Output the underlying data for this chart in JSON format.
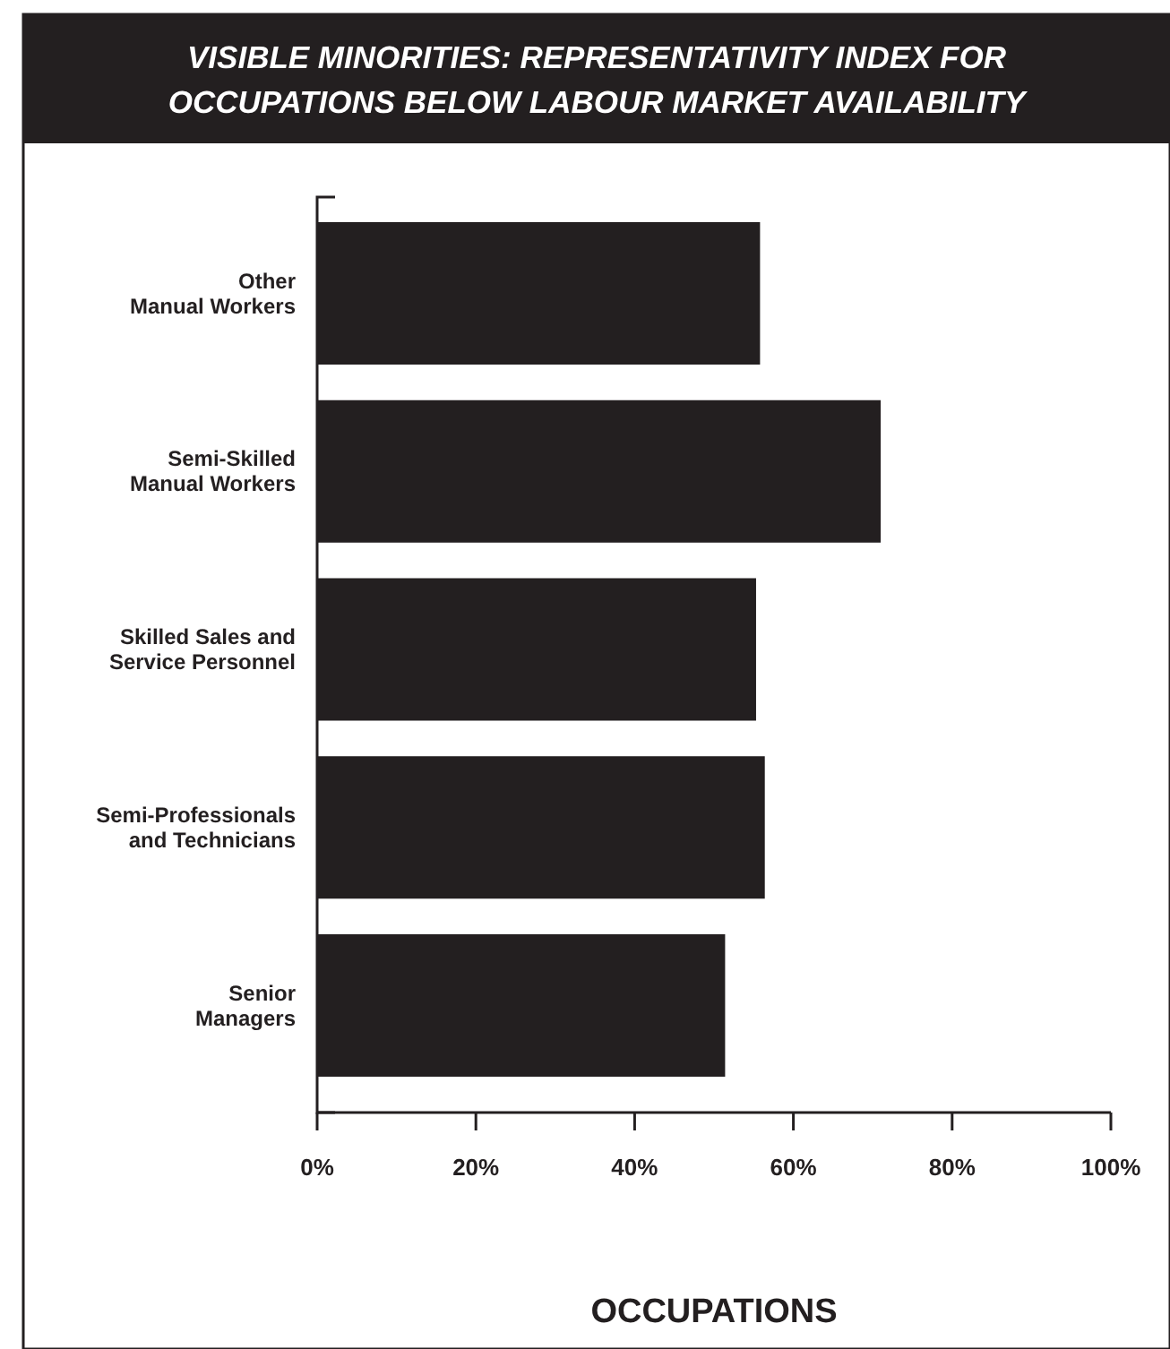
{
  "chart_data": {
    "type": "bar",
    "orientation": "horizontal",
    "title": "VISIBLE MINORITIES: REPRESENTATIVITY INDEX FOR OCCUPATIONS BELOW LABOUR MARKET AVAILABILITY",
    "xlabel": "OCCUPATIONS",
    "categories": [
      "Other Manual Workers",
      "Semi-Skilled Manual Workers",
      "Skilled Sales and Service Personnel",
      "Semi-Professionals and Technicians",
      "Senior Managers"
    ],
    "values": [
      55.8,
      71,
      55.3,
      56.4,
      51.4
    ],
    "color": "#231f20",
    "xlim": [
      0,
      100
    ],
    "xticks": [
      {
        "value": 0,
        "label": "0%"
      },
      {
        "value": 20,
        "label": "20%"
      },
      {
        "value": 40,
        "label": "40%"
      },
      {
        "value": 60,
        "label": "60%"
      },
      {
        "value": 80,
        "label": "80%"
      },
      {
        "value": 100,
        "label": "100%"
      }
    ],
    "grid": false
  }
}
